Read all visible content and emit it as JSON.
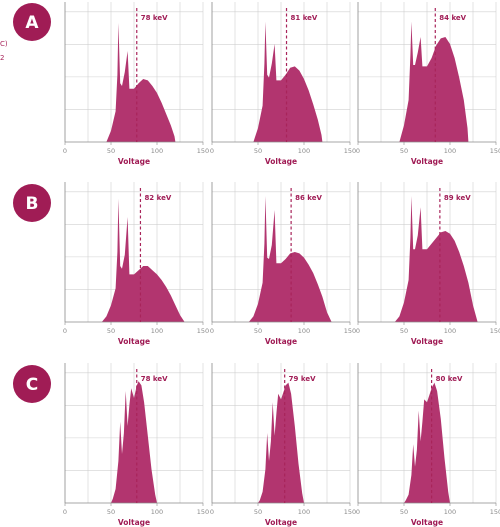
{
  "fragments": [
    "C)",
    "2"
  ],
  "colors": {
    "fill": "#b2356f",
    "dash": "#a8245a",
    "badge": "#a01c55",
    "grid": "#d0d0d0",
    "axis": "#8a8a8a",
    "text": "#404040"
  },
  "chart_data": [
    {
      "row": "A",
      "type": "area",
      "xlabel": "Voltage",
      "xlim": [
        0,
        150
      ],
      "xticks": [
        0,
        50,
        100,
        150
      ],
      "grid": true,
      "x": [
        45,
        50,
        55,
        57,
        58,
        60,
        62,
        65,
        68,
        70,
        75,
        80,
        85,
        90,
        95,
        100,
        105,
        110,
        115,
        119,
        120
      ],
      "y": [
        0,
        8,
        22,
        48,
        85,
        42,
        40,
        50,
        65,
        38,
        38,
        42,
        45,
        44,
        40,
        35,
        28,
        20,
        12,
        4,
        0
      ],
      "mean_kev": 78,
      "mean_label": "78 keV"
    },
    {
      "row": "A",
      "type": "area",
      "xlabel": "Voltage",
      "xlim": [
        0,
        150
      ],
      "xticks": [
        0,
        50,
        100,
        150
      ],
      "grid": true,
      "x": [
        45,
        50,
        55,
        57,
        58,
        60,
        62,
        65,
        68,
        70,
        75,
        80,
        85,
        90,
        95,
        100,
        105,
        110,
        115,
        119,
        120
      ],
      "y": [
        0,
        10,
        26,
        56,
        86,
        48,
        46,
        56,
        70,
        44,
        44,
        48,
        53,
        54,
        51,
        45,
        37,
        27,
        16,
        5,
        0
      ],
      "mean_kev": 81,
      "mean_label": "81 keV"
    },
    {
      "row": "A",
      "type": "area",
      "xlabel": "Voltage",
      "xlim": [
        0,
        150
      ],
      "xticks": [
        0,
        50,
        100,
        150
      ],
      "grid": true,
      "x": [
        45,
        50,
        55,
        57,
        58,
        60,
        62,
        65,
        68,
        70,
        75,
        80,
        85,
        90,
        95,
        100,
        105,
        110,
        115,
        119,
        120
      ],
      "y": [
        0,
        12,
        30,
        62,
        86,
        55,
        55,
        64,
        75,
        54,
        54,
        60,
        69,
        74,
        75,
        70,
        60,
        46,
        30,
        10,
        0
      ],
      "mean_kev": 84,
      "mean_label": "84 keV"
    },
    {
      "row": "B",
      "type": "area",
      "xlabel": "Voltage",
      "xlim": [
        0,
        150
      ],
      "xticks": [
        0,
        50,
        100,
        150
      ],
      "grid": true,
      "x": [
        40,
        45,
        50,
        55,
        57,
        58,
        60,
        62,
        65,
        68,
        70,
        75,
        80,
        85,
        90,
        95,
        100,
        105,
        110,
        115,
        120,
        125,
        130
      ],
      "y": [
        0,
        4,
        12,
        24,
        50,
        88,
        40,
        38,
        48,
        75,
        34,
        34,
        37,
        40,
        40,
        37,
        34,
        30,
        25,
        19,
        12,
        5,
        0
      ],
      "mean_kev": 82,
      "mean_label": "82 keV"
    },
    {
      "row": "B",
      "type": "area",
      "xlabel": "Voltage",
      "xlim": [
        0,
        150
      ],
      "xticks": [
        0,
        50,
        100,
        150
      ],
      "grid": true,
      "x": [
        40,
        45,
        50,
        55,
        57,
        58,
        60,
        62,
        65,
        68,
        70,
        75,
        80,
        85,
        90,
        95,
        100,
        105,
        110,
        115,
        120,
        125,
        130
      ],
      "y": [
        0,
        4,
        13,
        28,
        56,
        90,
        46,
        45,
        55,
        80,
        42,
        42,
        45,
        49,
        50,
        49,
        46,
        41,
        35,
        27,
        18,
        7,
        0
      ],
      "mean_kev": 86,
      "mean_label": "86 keV"
    },
    {
      "row": "B",
      "type": "area",
      "xlabel": "Voltage",
      "xlim": [
        0,
        150
      ],
      "xticks": [
        0,
        50,
        100,
        150
      ],
      "grid": true,
      "x": [
        40,
        45,
        50,
        55,
        57,
        58,
        60,
        62,
        65,
        68,
        70,
        75,
        80,
        85,
        90,
        95,
        100,
        105,
        110,
        115,
        120,
        125,
        130
      ],
      "y": [
        0,
        4,
        14,
        30,
        60,
        90,
        52,
        52,
        62,
        82,
        52,
        52,
        56,
        60,
        64,
        65,
        63,
        58,
        50,
        40,
        28,
        12,
        0
      ],
      "mean_kev": 89,
      "mean_label": "89 keV"
    },
    {
      "row": "C",
      "type": "area",
      "xlabel": "Voltage",
      "xlim": [
        0,
        150
      ],
      "xticks": [
        0,
        50,
        100,
        150
      ],
      "grid": true,
      "x": [
        50,
        52,
        55,
        58,
        60,
        62,
        64,
        66,
        68,
        70,
        72,
        75,
        78,
        80,
        83,
        86,
        90,
        94,
        98,
        100
      ],
      "y": [
        0,
        3,
        10,
        30,
        58,
        35,
        50,
        80,
        55,
        70,
        82,
        75,
        84,
        87,
        84,
        72,
        48,
        24,
        6,
        0
      ],
      "mean_kev": 78,
      "mean_label": "78 keV"
    },
    {
      "row": "C",
      "type": "area",
      "xlabel": "Voltage",
      "xlim": [
        0,
        150
      ],
      "xticks": [
        0,
        50,
        100,
        150
      ],
      "grid": true,
      "x": [
        50,
        52,
        55,
        58,
        60,
        62,
        64,
        66,
        68,
        70,
        72,
        75,
        78,
        80,
        83,
        86,
        90,
        94,
        98,
        100
      ],
      "y": [
        0,
        2,
        8,
        24,
        50,
        30,
        44,
        72,
        48,
        64,
        78,
        74,
        80,
        84,
        86,
        78,
        55,
        28,
        7,
        0
      ],
      "mean_kev": 79,
      "mean_label": "79 keV"
    },
    {
      "row": "C",
      "type": "area",
      "xlabel": "Voltage",
      "xlim": [
        0,
        150
      ],
      "xticks": [
        0,
        50,
        100,
        150
      ],
      "grid": true,
      "x": [
        50,
        52,
        55,
        58,
        60,
        62,
        64,
        66,
        68,
        70,
        72,
        75,
        78,
        80,
        83,
        86,
        90,
        94,
        98,
        100
      ],
      "y": [
        0,
        2,
        6,
        20,
        42,
        26,
        38,
        66,
        44,
        58,
        74,
        72,
        78,
        82,
        86,
        80,
        60,
        32,
        8,
        0
      ],
      "mean_kev": 80,
      "mean_label": "80 keV"
    }
  ]
}
